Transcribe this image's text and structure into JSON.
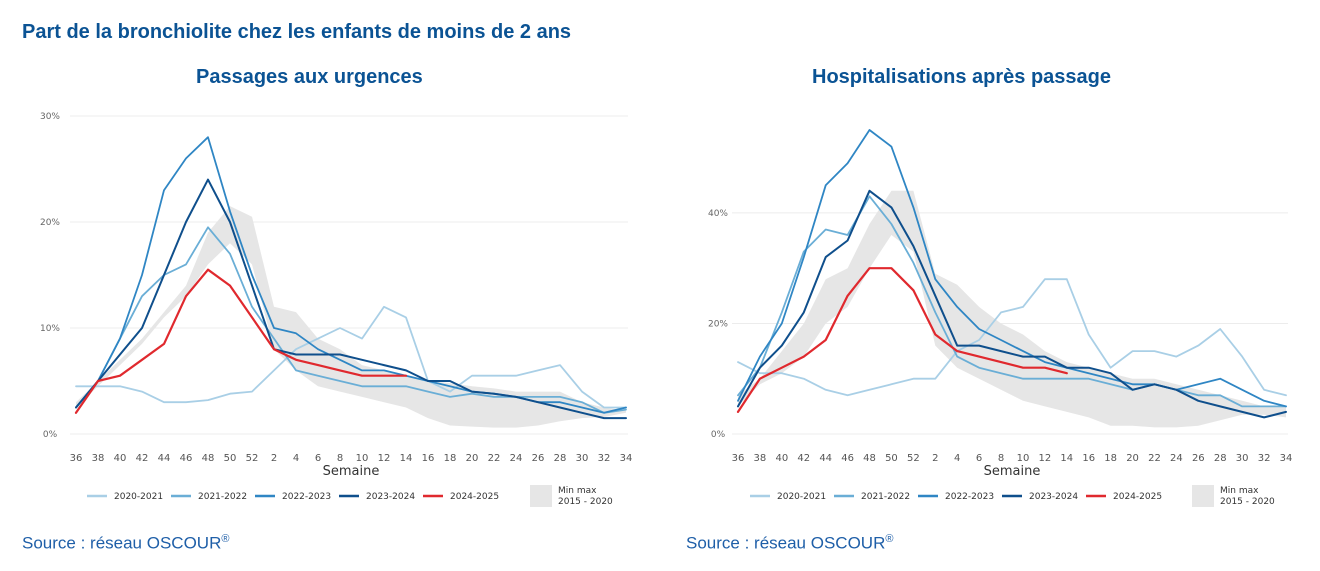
{
  "title": "Part de la bronchiolite chez les enfants de moins de 2 ans",
  "weeks": [
    "36",
    "38",
    "40",
    "42",
    "44",
    "46",
    "48",
    "50",
    "52",
    "2",
    "4",
    "6",
    "8",
    "10",
    "12",
    "14",
    "16",
    "18",
    "20",
    "22",
    "24",
    "26",
    "28",
    "30",
    "32",
    "34"
  ],
  "colors": {
    "2020-2021": "#a9cfe6",
    "2021-2022": "#6aaed6",
    "2022-2023": "#2f86c4",
    "2023-2024": "#0f4f8c",
    "2024-2025": "#e0292e",
    "minmax": "#e6e6e6"
  },
  "legend": {
    "s2020": "2020-2021",
    "s2021": "2021-2022",
    "s2022": "2022-2023",
    "s2023": "2023-2024",
    "s2024": "2024-2025",
    "minmax_line1": "Min max",
    "minmax_line2": "2015 - 2020"
  },
  "panels": {
    "left": {
      "title": "Passages aux urgences",
      "xlabel": "Semaine",
      "source": "Source : réseau OSCOUR",
      "source_mark": "®"
    },
    "right": {
      "title": "Hospitalisations après passage",
      "xlabel": "Semaine",
      "source": "Source : réseau OSCOUR",
      "source_mark": "®"
    }
  },
  "chart_data": [
    {
      "type": "line",
      "title": "Passages aux urgences",
      "xlabel": "Semaine",
      "ylabel": "",
      "ylim": [
        0,
        30
      ],
      "yticks": [
        0,
        10,
        20,
        30
      ],
      "ytick_labels": [
        "0%",
        "10%",
        "20%",
        "30%"
      ],
      "grid": true,
      "legend_position": "bottom",
      "x": [
        "36",
        "38",
        "40",
        "42",
        "44",
        "46",
        "48",
        "50",
        "52",
        "2",
        "4",
        "6",
        "8",
        "10",
        "12",
        "14",
        "16",
        "18",
        "20",
        "22",
        "24",
        "26",
        "28",
        "30",
        "32",
        "34"
      ],
      "band": {
        "name": "Min max 2015 - 2020",
        "min": [
          2.5,
          4.5,
          6.5,
          8.5,
          11,
          13,
          16,
          18,
          16,
          8,
          6,
          4.5,
          4,
          3.5,
          3,
          2.5,
          1.5,
          0.8,
          0.7,
          0.6,
          0.6,
          0.8,
          1.2,
          1.5,
          1.6,
          2
        ],
        "max": [
          3,
          5,
          7,
          9,
          11.5,
          14,
          19,
          21.5,
          20.5,
          12,
          11.5,
          9,
          8,
          6.5,
          6,
          5.5,
          5,
          4.8,
          4.5,
          4.3,
          4,
          4,
          4,
          3,
          2.5,
          2.2
        ]
      },
      "series": [
        {
          "name": "2020-2021",
          "values": [
            4.5,
            4.5,
            4.5,
            4,
            3,
            3,
            3.2,
            3.8,
            4,
            6,
            8,
            9,
            10,
            9,
            12,
            11,
            5,
            4,
            5.5,
            5.5,
            5.5,
            6,
            6.5,
            4,
            2.5,
            2.5
          ]
        },
        {
          "name": "2021-2022",
          "values": [
            2.5,
            5,
            9,
            13,
            15,
            16,
            19.5,
            17,
            12,
            9,
            6,
            5.5,
            5,
            4.5,
            4.5,
            4.5,
            4,
            3.5,
            3.8,
            3.5,
            3.5,
            3.5,
            3.5,
            3,
            2,
            2.3
          ]
        },
        {
          "name": "2022-2023",
          "values": [
            2.5,
            5,
            9,
            15,
            23,
            26,
            28,
            21,
            15,
            10,
            9.5,
            8,
            7,
            6,
            6,
            5.5,
            5,
            4.5,
            4,
            3.8,
            3.5,
            3,
            3,
            2.5,
            2,
            2.5
          ]
        },
        {
          "name": "2023-2024",
          "values": [
            2.5,
            5,
            7.5,
            10,
            15,
            20,
            24,
            20,
            14,
            8,
            7.5,
            7.5,
            7.5,
            7,
            6.5,
            6,
            5,
            5,
            4,
            3.8,
            3.5,
            3,
            2.5,
            2,
            1.5,
            1.5
          ]
        },
        {
          "name": "2024-2025",
          "values": [
            2,
            5,
            5.5,
            7,
            8.5,
            13,
            15.5,
            14,
            11,
            8,
            7,
            6.5,
            6,
            5.5,
            5.5,
            5.5,
            null,
            null,
            null,
            null,
            null,
            null,
            null,
            null,
            null,
            null
          ]
        }
      ]
    },
    {
      "type": "line",
      "title": "Hospitalisations après passage",
      "xlabel": "Semaine",
      "ylabel": "",
      "ylim": [
        0,
        55
      ],
      "yticks": [
        0,
        20,
        40
      ],
      "ytick_labels": [
        "0%",
        "20%",
        "40%"
      ],
      "grid": true,
      "legend_position": "bottom",
      "x": [
        "36",
        "38",
        "40",
        "42",
        "44",
        "46",
        "48",
        "50",
        "52",
        "2",
        "4",
        "6",
        "8",
        "10",
        "12",
        "14",
        "16",
        "18",
        "20",
        "22",
        "24",
        "26",
        "28",
        "30",
        "32",
        "34"
      ],
      "band": {
        "name": "Min max 2015 - 2020",
        "min": [
          5,
          9,
          11,
          14,
          20,
          23,
          30,
          36,
          33,
          16,
          12,
          10,
          8,
          6,
          5,
          4,
          3,
          1.5,
          1.5,
          1.2,
          1.2,
          1.5,
          2.5,
          3.5,
          3.5,
          3
        ],
        "max": [
          7,
          10,
          15,
          20,
          28,
          30,
          38,
          44,
          44,
          29,
          27,
          23,
          20,
          18,
          15,
          13,
          12,
          11,
          10,
          10,
          9,
          8,
          7,
          6,
          5,
          5
        ]
      },
      "series": [
        {
          "name": "2020-2021",
          "values": [
            13,
            11,
            11,
            10,
            8,
            7,
            8,
            9,
            10,
            10,
            15,
            17,
            22,
            23,
            28,
            28,
            18,
            12,
            15,
            15,
            14,
            16,
            19,
            14,
            8,
            7
          ]
        },
        {
          "name": "2021-2022",
          "values": [
            7,
            12,
            22,
            33,
            37,
            36,
            43,
            38,
            31,
            22,
            14,
            12,
            11,
            10,
            10,
            10,
            10,
            9,
            8,
            9,
            8,
            7,
            7,
            5,
            5,
            5
          ]
        },
        {
          "name": "2022-2023",
          "values": [
            6,
            14,
            20,
            32,
            45,
            49,
            55,
            52,
            41,
            28,
            23,
            19,
            17,
            15,
            13,
            12,
            11,
            10,
            9,
            9,
            8,
            9,
            10,
            8,
            6,
            5
          ]
        },
        {
          "name": "2023-2024",
          "values": [
            5,
            12,
            16,
            22,
            32,
            35,
            44,
            41,
            34,
            25,
            16,
            16,
            15,
            14,
            14,
            12,
            12,
            11,
            8,
            9,
            8,
            6,
            5,
            4,
            3,
            4
          ]
        },
        {
          "name": "2024-2025",
          "values": [
            4,
            10,
            12,
            14,
            17,
            25,
            30,
            30,
            26,
            18,
            15,
            14,
            13,
            12,
            12,
            11,
            null,
            null,
            null,
            null,
            null,
            null,
            null,
            null,
            null,
            null
          ]
        }
      ]
    }
  ]
}
